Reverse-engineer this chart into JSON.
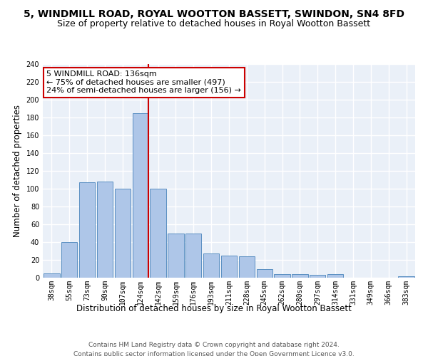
{
  "title": "5, WINDMILL ROAD, ROYAL WOOTTON BASSETT, SWINDON, SN4 8FD",
  "subtitle": "Size of property relative to detached houses in Royal Wootton Bassett",
  "xlabel": "Distribution of detached houses by size in Royal Wootton Bassett",
  "ylabel": "Number of detached properties",
  "footer_line1": "Contains HM Land Registry data © Crown copyright and database right 2024.",
  "footer_line2": "Contains public sector information licensed under the Open Government Licence v3.0.",
  "categories": [
    "38sqm",
    "55sqm",
    "73sqm",
    "90sqm",
    "107sqm",
    "124sqm",
    "142sqm",
    "159sqm",
    "176sqm",
    "193sqm",
    "211sqm",
    "228sqm",
    "245sqm",
    "262sqm",
    "280sqm",
    "297sqm",
    "314sqm",
    "331sqm",
    "349sqm",
    "366sqm",
    "383sqm"
  ],
  "values": [
    5,
    40,
    107,
    108,
    100,
    185,
    100,
    50,
    50,
    27,
    25,
    24,
    10,
    4,
    4,
    3,
    4,
    0,
    0,
    0,
    2
  ],
  "bar_color": "#aec6e8",
  "bar_edge_color": "#5a8fc2",
  "vline_color": "#cc0000",
  "annotation_text": "5 WINDMILL ROAD: 136sqm\n← 75% of detached houses are smaller (497)\n24% of semi-detached houses are larger (156) →",
  "annotation_box_color": "white",
  "annotation_box_edge": "#cc0000",
  "ylim": [
    0,
    240
  ],
  "yticks": [
    0,
    20,
    40,
    60,
    80,
    100,
    120,
    140,
    160,
    180,
    200,
    220,
    240
  ],
  "background_color": "#eaf0f8",
  "grid_color": "white",
  "title_fontsize": 10,
  "subtitle_fontsize": 9,
  "xlabel_fontsize": 8.5,
  "ylabel_fontsize": 8.5,
  "tick_fontsize": 7,
  "footer_fontsize": 6.5,
  "annotation_fontsize": 8
}
